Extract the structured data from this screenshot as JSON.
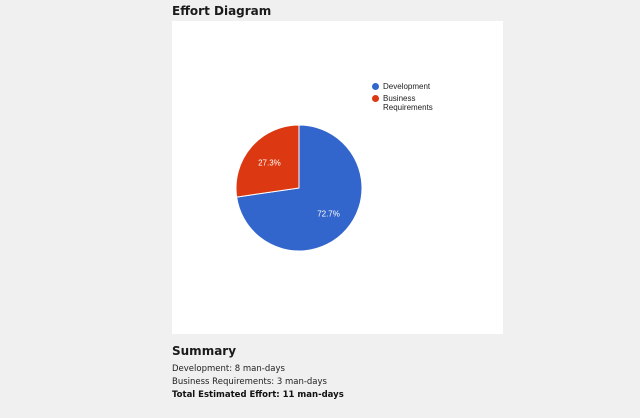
{
  "chart_section": {
    "title": "Effort Diagram"
  },
  "chart_data": {
    "type": "pie",
    "title": "",
    "legend_position": "right",
    "slices": [
      {
        "label": "Development",
        "value": 72.7,
        "display": "72.7%",
        "color": "#3366cc"
      },
      {
        "label": "Business Requirements",
        "value": 27.3,
        "display": "27.3%",
        "color": "#dc3912"
      }
    ]
  },
  "summary": {
    "title": "Summary",
    "development": "Development: 8 man-days",
    "business_requirements": "Business Requirements: 3 man-days",
    "total": "Total Estimated Effort: 11 man-days"
  }
}
